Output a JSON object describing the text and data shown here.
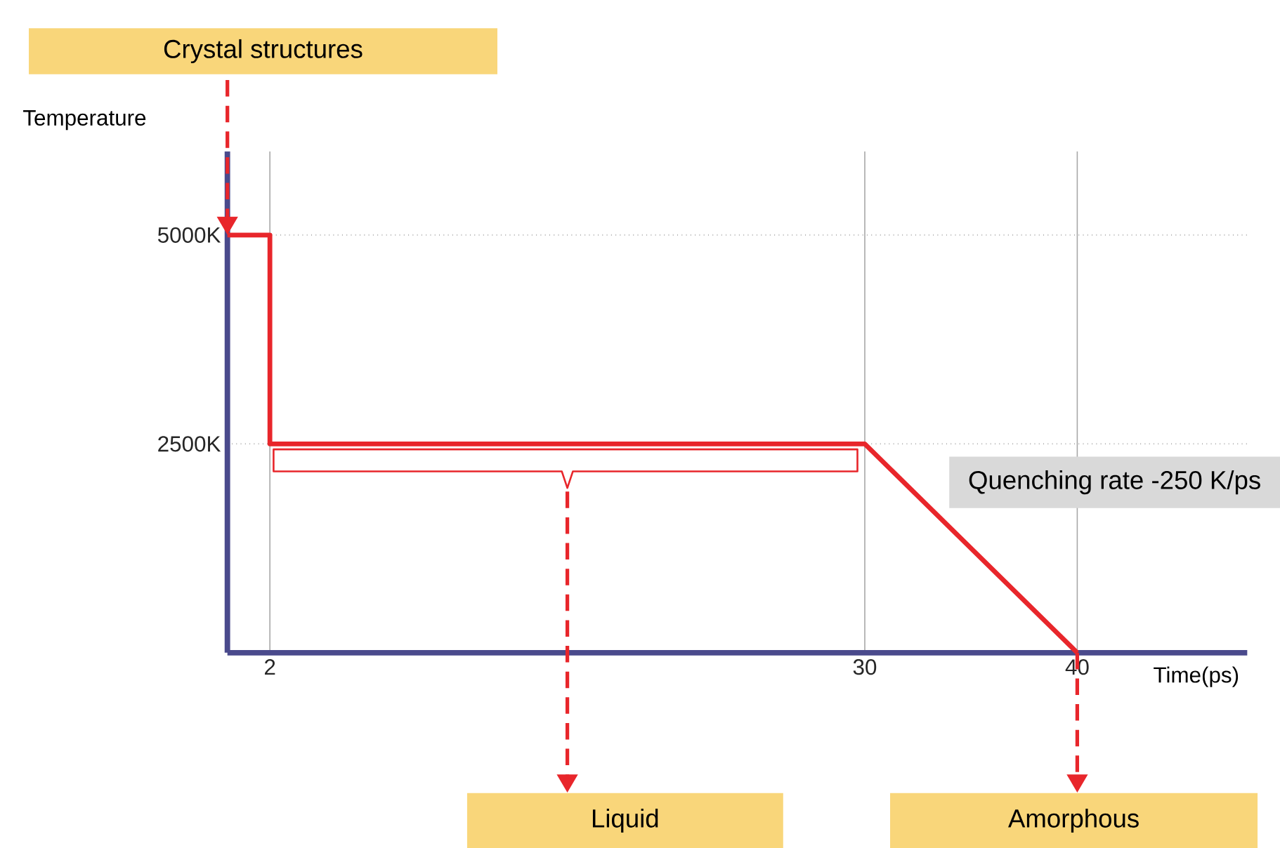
{
  "chart_data": {
    "type": "line",
    "xlabel": "Time(ps)",
    "ylabel": "Temperature",
    "x": [
      0,
      2,
      2,
      30,
      40
    ],
    "series": [
      {
        "color": "#e8262b",
        "values": [
          5000,
          5000,
          2500,
          2500,
          0
        ]
      }
    ],
    "xlim": [
      0,
      48
    ],
    "ylim": [
      0,
      6000
    ],
    "xticks": [
      2,
      30,
      40
    ],
    "yticks": [
      {
        "value": 2500,
        "label": "2500K"
      },
      {
        "value": 5000,
        "label": "5000K"
      }
    ],
    "grid": true,
    "marker": "none",
    "annotations": [
      "Crystal structures",
      "Liquid",
      "Amorphous",
      "Quenching rate -250 K/ps"
    ]
  }
}
